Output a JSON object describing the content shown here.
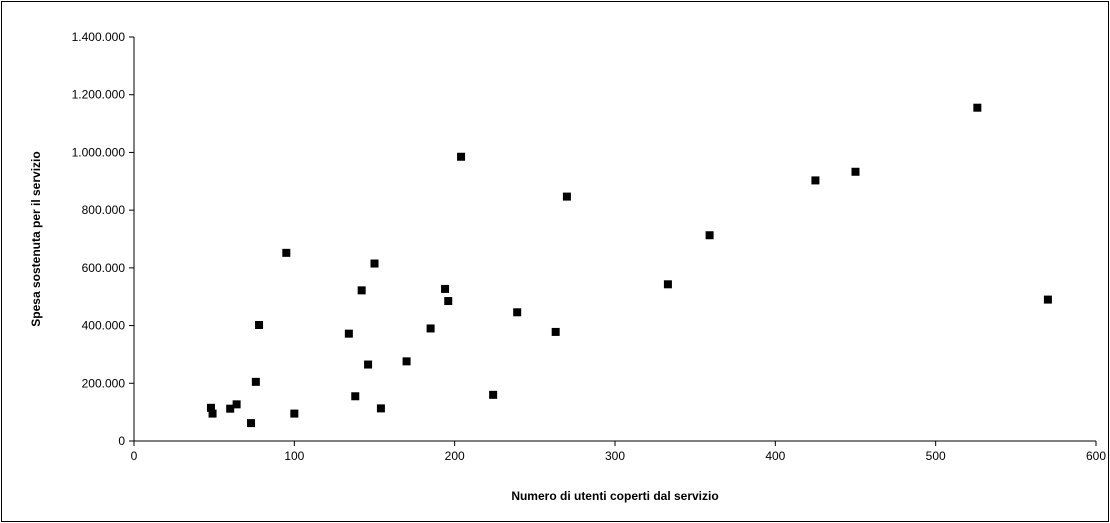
{
  "chart_data": {
    "type": "scatter",
    "title": "",
    "xlabel": "Numero di utenti coperti dal servizio",
    "ylabel": "Spesa sostenuta per il servizio",
    "xlim": [
      0,
      600
    ],
    "ylim": [
      0,
      1400000
    ],
    "x_ticks": [
      0,
      100,
      200,
      300,
      400,
      500,
      600
    ],
    "x_tick_labels": [
      "0",
      "100",
      "200",
      "300",
      "400",
      "500",
      "600"
    ],
    "y_ticks": [
      0,
      200000,
      400000,
      600000,
      800000,
      1000000,
      1200000,
      1400000
    ],
    "y_tick_labels": [
      "0",
      "200.000",
      "400.000",
      "600.000",
      "800.000",
      "1.000.000",
      "1.200.000",
      "1.400.000"
    ],
    "grid": false,
    "legend": "none",
    "marker": "square",
    "marker_color": "#000000",
    "series": [
      {
        "points": [
          {
            "x": 48,
            "y": 115000
          },
          {
            "x": 49,
            "y": 95000
          },
          {
            "x": 60,
            "y": 112000
          },
          {
            "x": 64,
            "y": 127000
          },
          {
            "x": 73,
            "y": 62000
          },
          {
            "x": 76,
            "y": 205000
          },
          {
            "x": 78,
            "y": 402000
          },
          {
            "x": 95,
            "y": 652000
          },
          {
            "x": 100,
            "y": 95000
          },
          {
            "x": 134,
            "y": 372000
          },
          {
            "x": 138,
            "y": 155000
          },
          {
            "x": 142,
            "y": 522000
          },
          {
            "x": 146,
            "y": 265000
          },
          {
            "x": 150,
            "y": 615000
          },
          {
            "x": 154,
            "y": 113000
          },
          {
            "x": 170,
            "y": 276000
          },
          {
            "x": 185,
            "y": 390000
          },
          {
            "x": 194,
            "y": 527000
          },
          {
            "x": 196,
            "y": 485000
          },
          {
            "x": 204,
            "y": 985000
          },
          {
            "x": 224,
            "y": 160000
          },
          {
            "x": 239,
            "y": 446000
          },
          {
            "x": 263,
            "y": 378000
          },
          {
            "x": 270,
            "y": 847000
          },
          {
            "x": 333,
            "y": 543000
          },
          {
            "x": 359,
            "y": 713000
          },
          {
            "x": 425,
            "y": 903000
          },
          {
            "x": 450,
            "y": 933000
          },
          {
            "x": 526,
            "y": 1155000
          },
          {
            "x": 570,
            "y": 490000
          }
        ]
      }
    ]
  }
}
